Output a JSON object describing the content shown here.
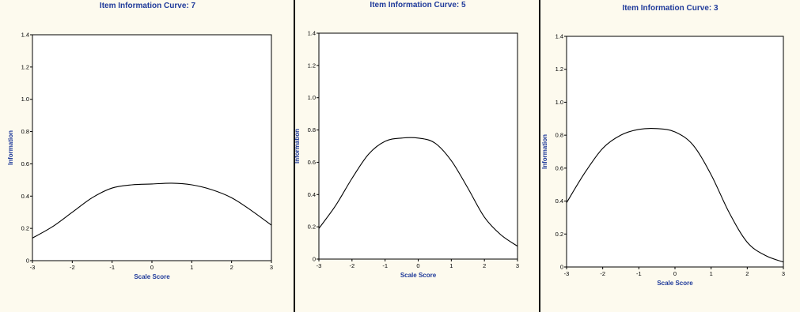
{
  "chart_data": [
    {
      "type": "line",
      "title": "Item Information Curve: 7",
      "xlabel": "Scale Score",
      "ylabel": "Information",
      "xlim": [
        -3,
        3
      ],
      "ylim": [
        0,
        1.4
      ],
      "xticks": [
        -3,
        -2,
        -1,
        0,
        1,
        2,
        3
      ],
      "yticks": [
        0,
        0.2,
        0.4,
        0.6,
        0.8,
        1.0,
        1.2,
        1.4
      ],
      "x": [
        -3,
        -2.5,
        -2,
        -1.5,
        -1,
        -0.5,
        0,
        0.5,
        1,
        1.5,
        2,
        2.5,
        3
      ],
      "y": [
        0.14,
        0.21,
        0.3,
        0.39,
        0.45,
        0.47,
        0.475,
        0.48,
        0.47,
        0.44,
        0.39,
        0.31,
        0.22
      ]
    },
    {
      "type": "line",
      "title": "Item Information Curve: 5",
      "xlabel": "Scale Score",
      "ylabel": "Information",
      "xlim": [
        -3,
        3
      ],
      "ylim": [
        0,
        1.4
      ],
      "xticks": [
        -3,
        -2,
        -1,
        0,
        1,
        2,
        3
      ],
      "yticks": [
        0,
        0.2,
        0.4,
        0.6,
        0.8,
        1.0,
        1.2,
        1.4
      ],
      "x": [
        -3,
        -2.5,
        -2,
        -1.5,
        -1,
        -0.5,
        0,
        0.5,
        1,
        1.5,
        2,
        2.5,
        3
      ],
      "y": [
        0.19,
        0.33,
        0.5,
        0.65,
        0.73,
        0.75,
        0.75,
        0.72,
        0.61,
        0.44,
        0.26,
        0.15,
        0.08
      ]
    },
    {
      "type": "line",
      "title": "Item Information Curve: 3",
      "xlabel": "Scale Score",
      "ylabel": "Information",
      "xlim": [
        -3,
        3
      ],
      "ylim": [
        0,
        1.4
      ],
      "xticks": [
        -3,
        -2,
        -1,
        0,
        1,
        2,
        3
      ],
      "yticks": [
        0,
        0.2,
        0.4,
        0.6,
        0.8,
        1.0,
        1.2,
        1.4
      ],
      "x": [
        -3,
        -2.5,
        -2,
        -1.5,
        -1,
        -0.5,
        0,
        0.5,
        1,
        1.5,
        2,
        2.5,
        3
      ],
      "y": [
        0.39,
        0.57,
        0.72,
        0.8,
        0.835,
        0.84,
        0.82,
        0.74,
        0.56,
        0.33,
        0.15,
        0.07,
        0.03
      ]
    }
  ]
}
